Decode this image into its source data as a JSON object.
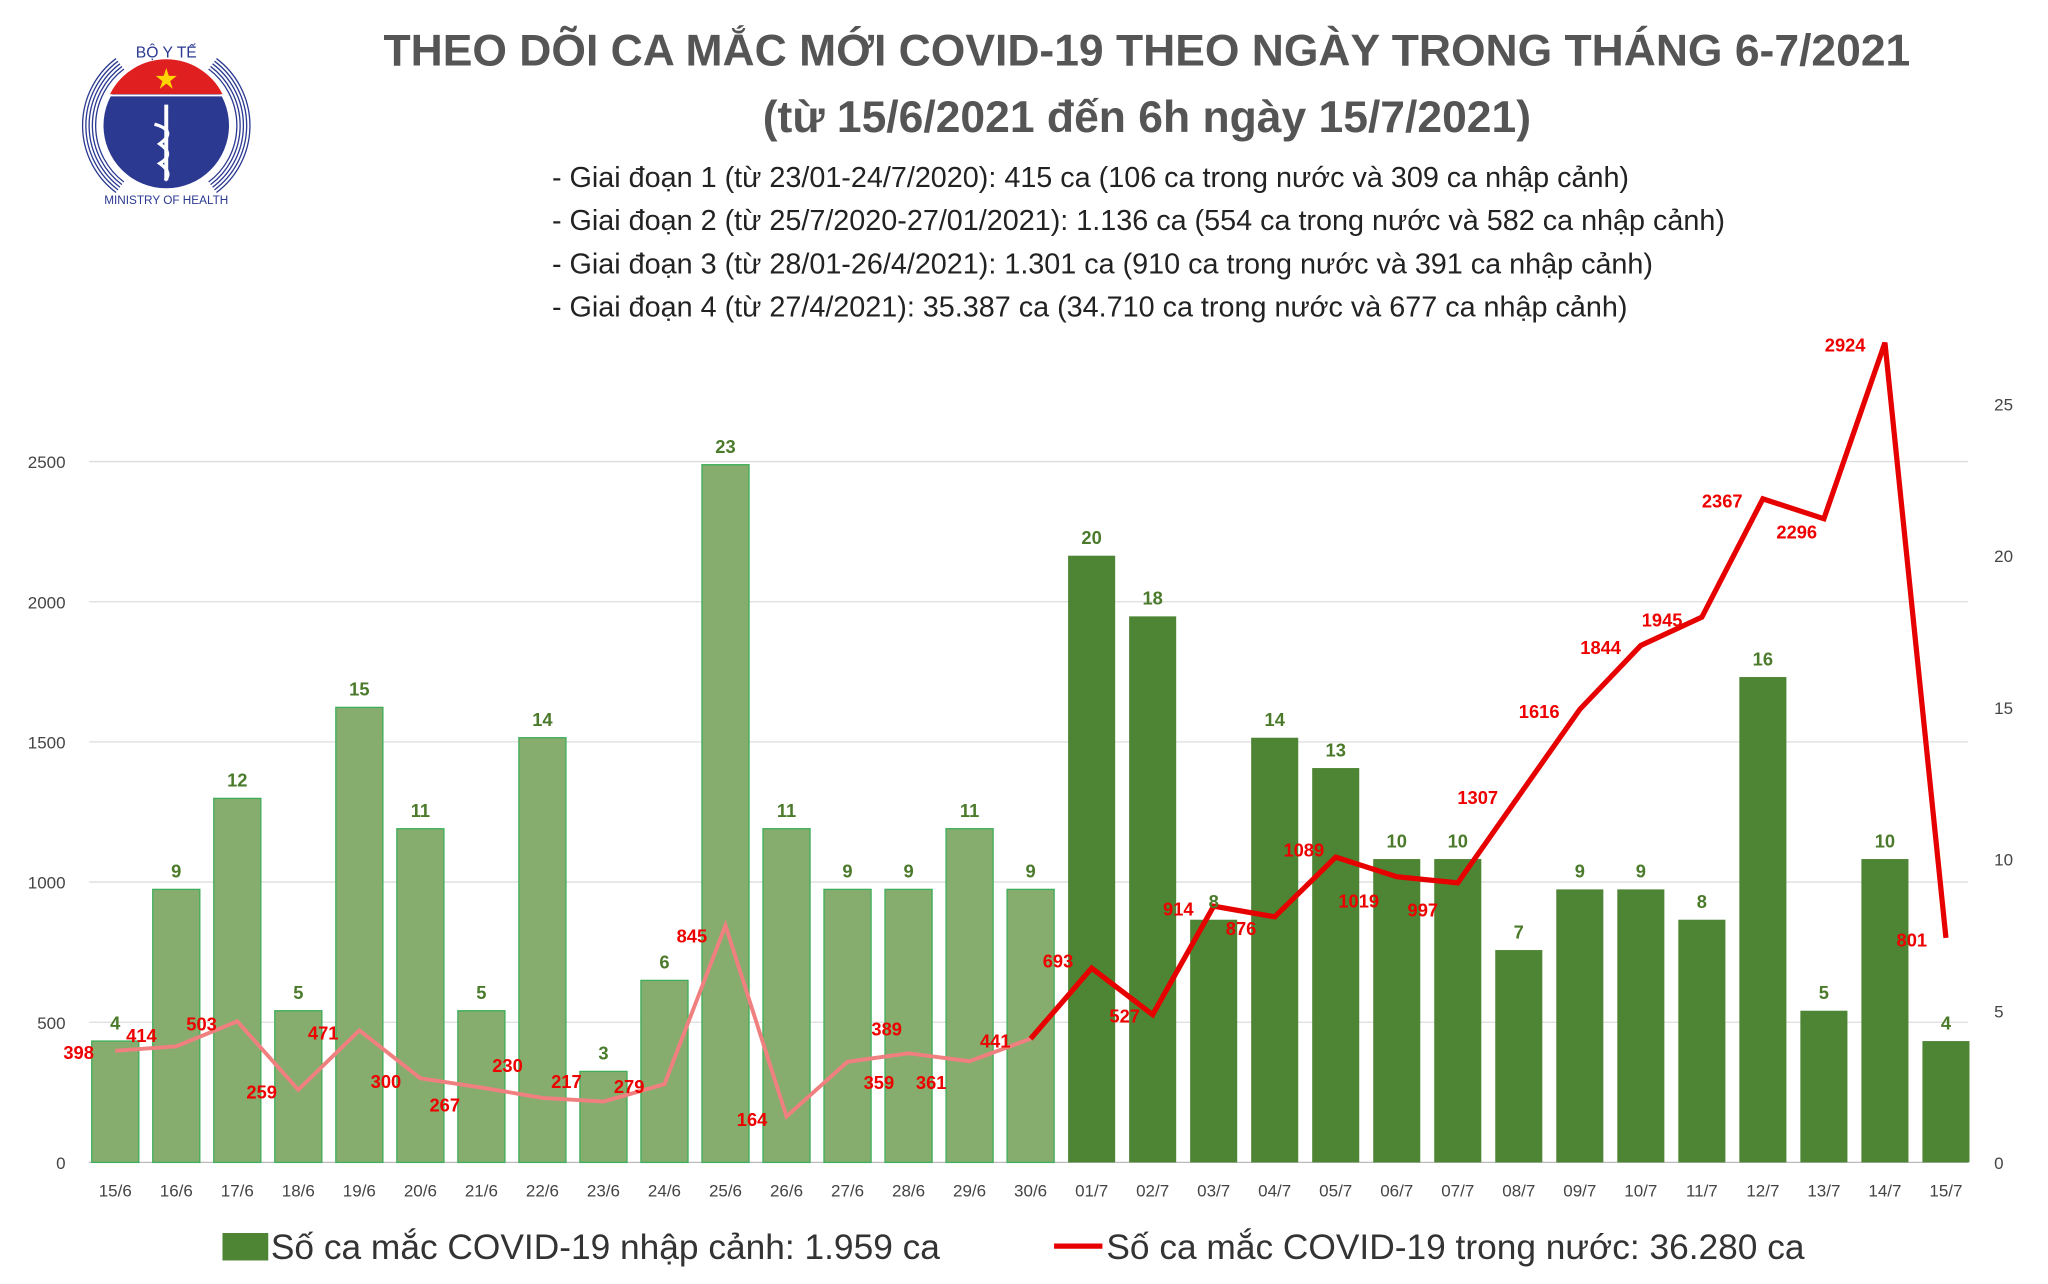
{
  "header": {
    "title_line1": "THEO DÕI CA MẮC MỚI COVID-19 THEO NGÀY TRONG THÁNG 6-7/2021",
    "title_line2": "(từ 15/6/2021 đến 6h ngày 15/7/2021)",
    "bullets": [
      "- Giai đoạn 1 (từ 23/01-24/7/2020): 415 ca (106 ca trong nước và 309 ca nhập cảnh)",
      "- Giai đoạn 2 (từ 25/7/2020-27/01/2021): 1.136 ca (554 ca trong nước và 582 ca nhập cảnh)",
      "- Giai đoạn 3 (từ 28/01-26/4/2021): 1.301 ca (910 ca trong nước và 391 ca nhập cảnh)",
      "- Giai đoạn 4 (từ 27/4/2021): 35.387 ca (34.710 ca trong nước và 677 ca nhập cảnh)"
    ]
  },
  "logo": {
    "top_text": "BỘ Y TẾ",
    "bottom_text": "MINISTRY OF HEALTH"
  },
  "chart_data": {
    "type": "bar+line",
    "categories": [
      "15/6",
      "16/6",
      "17/6",
      "18/6",
      "19/6",
      "20/6",
      "21/6",
      "22/6",
      "23/6",
      "24/6",
      "25/6",
      "26/6",
      "27/6",
      "28/6",
      "29/6",
      "30/6",
      "01/7",
      "02/7",
      "03/7",
      "04/7",
      "05/7",
      "06/7",
      "07/7",
      "08/7",
      "09/7",
      "10/7",
      "11/7",
      "12/7",
      "13/7",
      "14/7",
      "15/7"
    ],
    "series": [
      {
        "name": "Số ca mắc COVID-19 nhập cảnh: 1.959 ca",
        "type": "bar",
        "axis": "right",
        "values": [
          4,
          9,
          12,
          5,
          15,
          11,
          5,
          14,
          3,
          6,
          23,
          11,
          9,
          9,
          11,
          9,
          20,
          18,
          8,
          14,
          13,
          10,
          10,
          7,
          9,
          9,
          8,
          16,
          5,
          10,
          4
        ],
        "color_june": "#86ad6e",
        "color_july": "#4e8535"
      },
      {
        "name": "Số ca mắc COVID-19 trong nước: 36.280 ca",
        "type": "line",
        "axis": "left",
        "values": [
          398,
          414,
          503,
          259,
          471,
          300,
          267,
          230,
          217,
          279,
          845,
          164,
          359,
          389,
          361,
          441,
          693,
          527,
          914,
          876,
          1089,
          1019,
          997,
          1307,
          1616,
          1844,
          1945,
          2367,
          2296,
          2924,
          801
        ],
        "color_june": "#f08080",
        "color_july": "#e60000"
      }
    ],
    "left_axis": {
      "range": [
        0,
        2500
      ],
      "ticks": [
        "0",
        "500",
        "1000",
        "1500",
        "2000",
        "2500"
      ]
    },
    "right_axis": {
      "range": [
        0,
        25
      ],
      "ticks": [
        "0",
        "5",
        "10",
        "15",
        "20",
        "25"
      ]
    },
    "grid": true,
    "legend": "bottom"
  }
}
